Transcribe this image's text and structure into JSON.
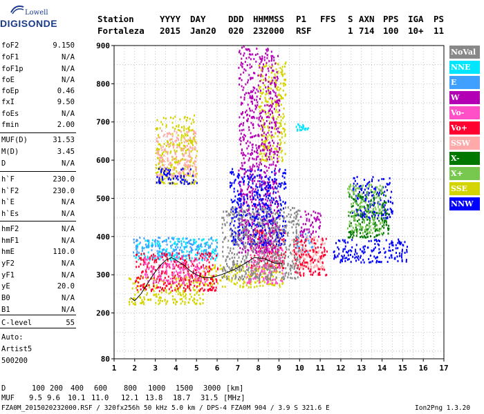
{
  "logo": {
    "top": "Lowell",
    "main": "DIGISONDE"
  },
  "header": {
    "labels": [
      "Station",
      "YYYY",
      "DAY",
      "DDD",
      "HHMMSS",
      "P1",
      "FFS",
      "S",
      "AXN",
      "PPS",
      "IGA",
      "PS"
    ],
    "values": [
      "Fortaleza",
      "2015",
      "Jan20",
      "020",
      "232000",
      "RSF",
      "",
      "1",
      "714",
      "100",
      "10+",
      "11"
    ]
  },
  "params": [
    {
      "name": "foF2",
      "value": "9.150"
    },
    {
      "name": "foF1",
      "value": "N/A"
    },
    {
      "name": "foF1p",
      "value": "N/A"
    },
    {
      "name": "foE",
      "value": "N/A"
    },
    {
      "name": "foEp",
      "value": "0.46"
    },
    {
      "name": "fxI",
      "value": "9.50"
    },
    {
      "name": "foEs",
      "value": "N/A"
    },
    {
      "name": "fmin",
      "value": "2.00"
    },
    {
      "name": "MUF(D)",
      "value": "31.53"
    },
    {
      "name": "M(D)",
      "value": "3.45"
    },
    {
      "name": "D",
      "value": "N/A"
    },
    {
      "name": "h`F",
      "value": "230.0"
    },
    {
      "name": "h`F2",
      "value": "230.0"
    },
    {
      "name": "h`E",
      "value": "N/A"
    },
    {
      "name": "h`Es",
      "value": "N/A"
    },
    {
      "name": "hmF2",
      "value": "N/A"
    },
    {
      "name": "hmF1",
      "value": "N/A"
    },
    {
      "name": "hmE",
      "value": "110.0"
    },
    {
      "name": "yF2",
      "value": "N/A"
    },
    {
      "name": "yF1",
      "value": "N/A"
    },
    {
      "name": "yE",
      "value": "20.0"
    },
    {
      "name": "B0",
      "value": "N/A"
    },
    {
      "name": "B1",
      "value": "N/A"
    },
    {
      "name": "C-level",
      "value": "55"
    }
  ],
  "side": {
    "auto_label": "Auto:",
    "artist": "Artist5",
    "code": "500200"
  },
  "footer": {
    "d_label": "D",
    "d_values": [
      "100",
      "200",
      "400",
      "600",
      "800",
      "1000",
      "1500",
      "3000",
      "[km]"
    ],
    "muf_label": "MUF",
    "muf_values": [
      "9.5",
      "9.6",
      "10.1",
      "11.0",
      "12.1",
      "13.8",
      "18.7",
      "31.5",
      "[MHz]"
    ],
    "info": "FZA0M_2015020232000.RSF / 320fx256h 50 kHz 5.0 km / DPS-4 FZA0M 904 / 3.9 S 321.6 E",
    "software": "Ion2Png 1.3.20"
  },
  "legend": [
    {
      "label": "NoVal",
      "color": "#888888"
    },
    {
      "label": "NNE",
      "color": "#00e6ff"
    },
    {
      "label": "E",
      "color": "#3fa0ff"
    },
    {
      "label": "W",
      "color": "#b400b4"
    },
    {
      "label": "Vo-",
      "color": "#ff50c8"
    },
    {
      "label": "Vo+",
      "color": "#ff0030"
    },
    {
      "label": "SSW",
      "color": "#ffaaaa"
    },
    {
      "label": "X-",
      "color": "#007800"
    },
    {
      "label": "X+",
      "color": "#78c850"
    },
    {
      "label": "SSE",
      "color": "#d4d400"
    },
    {
      "label": "NNW",
      "color": "#0000ff"
    }
  ],
  "chart_data": {
    "type": "scatter",
    "title": "",
    "xlabel": "",
    "ylabel": "",
    "xlim": [
      1,
      17
    ],
    "ylim": [
      80,
      900
    ],
    "x_ticks": [
      1,
      2,
      3,
      4,
      5,
      6,
      7,
      8,
      9,
      10,
      11,
      12,
      13,
      14,
      15,
      16,
      17
    ],
    "y_ticks": [
      80,
      200,
      300,
      400,
      500,
      600,
      700,
      800,
      900
    ],
    "grid": true,
    "legend_position": "right",
    "trace": {
      "x": [
        1.8,
        2.0,
        2.3,
        2.6,
        2.9,
        3.2,
        3.5,
        3.8,
        4.1,
        4.4,
        4.7,
        5.0,
        5.3,
        5.7,
        6.2,
        6.8,
        7.3,
        7.8,
        8.3,
        8.8,
        9.15
      ],
      "y": [
        240,
        232,
        250,
        275,
        300,
        322,
        338,
        345,
        335,
        325,
        310,
        300,
        293,
        292,
        300,
        313,
        328,
        345,
        342,
        330,
        330
      ]
    },
    "series": [
      {
        "name": "SSE",
        "clusters": [
          [
            1.7,
            5.3,
            225,
            300
          ],
          [
            3.0,
            5.0,
            540,
            720
          ],
          [
            5.3,
            9.2,
            270,
            330
          ],
          [
            8.0,
            9.3,
            600,
            860
          ]
        ]
      },
      {
        "name": "NNE",
        "clusters": [
          [
            2.0,
            6.0,
            340,
            400
          ],
          [
            9.8,
            10.4,
            680,
            700
          ]
        ]
      },
      {
        "name": "E",
        "clusters": [
          [
            1.9,
            6.0,
            350,
            400
          ],
          [
            9.8,
            10.6,
            360,
            420
          ]
        ]
      },
      {
        "name": "SSW",
        "clusters": [
          [
            3.0,
            5.0,
            560,
            680
          ],
          [
            9.6,
            11.2,
            320,
            410
          ]
        ]
      },
      {
        "name": "Vo+",
        "clusters": [
          [
            2.0,
            6.0,
            260,
            360
          ],
          [
            7.6,
            9.3,
            320,
            420
          ],
          [
            9.7,
            11.3,
            300,
            400
          ]
        ]
      },
      {
        "name": "Vo-",
        "clusters": [
          [
            2.4,
            5.5,
            280,
            350
          ],
          [
            7.4,
            9.2,
            280,
            400
          ]
        ]
      },
      {
        "name": "W",
        "clusters": [
          [
            7.0,
            9.0,
            360,
            900
          ],
          [
            10.0,
            11.0,
            400,
            470
          ]
        ]
      },
      {
        "name": "NNW",
        "clusters": [
          [
            3.0,
            5.0,
            540,
            580
          ],
          [
            6.6,
            9.3,
            380,
            580
          ],
          [
            11.6,
            15.2,
            335,
            395
          ],
          [
            12.5,
            14.5,
            450,
            560
          ]
        ]
      },
      {
        "name": "X-",
        "clusters": [
          [
            12.3,
            14.3,
            400,
            520
          ]
        ]
      },
      {
        "name": "X+",
        "clusters": [
          [
            12.3,
            14.0,
            410,
            540
          ]
        ]
      },
      {
        "name": "NoVal",
        "clusters": [
          [
            6.2,
            10.0,
            290,
            480
          ]
        ]
      }
    ]
  }
}
